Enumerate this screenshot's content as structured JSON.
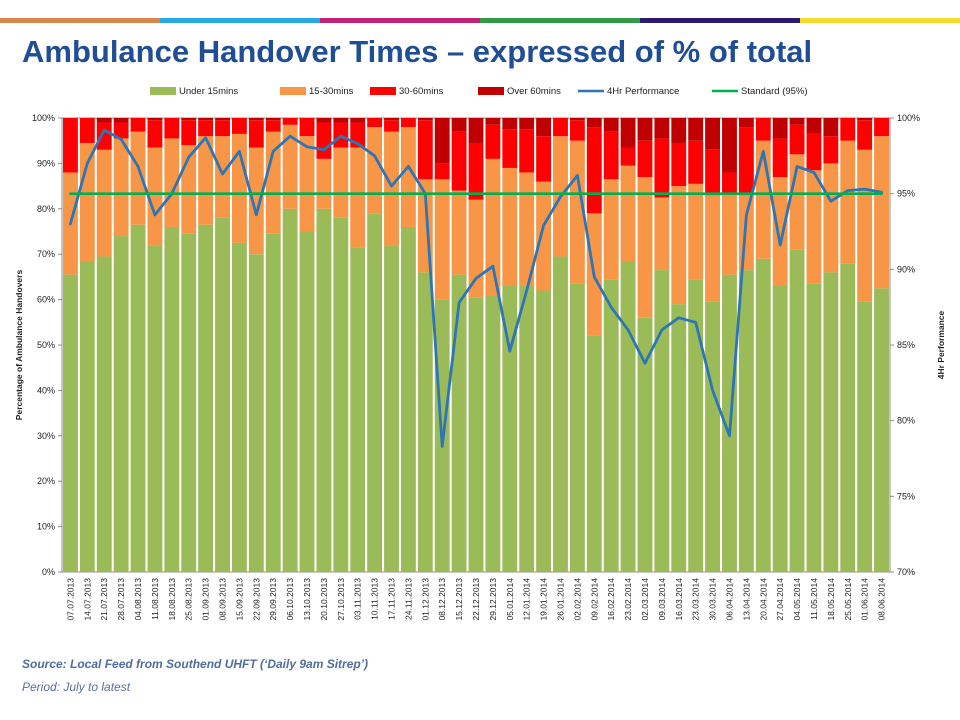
{
  "header": {
    "title": "Ambulance Handover Times – expressed of % of total",
    "stripe_colors": [
      "#d9874a",
      "#27a9e1",
      "#c2227a",
      "#2f9b47",
      "#2d1a6e",
      "#f2dd2e"
    ]
  },
  "footer": {
    "source": "Source: Local Feed from Southend UHFT (‘Daily 9am Sitrep’)",
    "period": "Period: July to latest"
  },
  "chart_data": {
    "type": "bar",
    "stacked": true,
    "title": "",
    "xlabel": "",
    "ylabel": "Percentage of Ambulance Handovers",
    "y2label": "4Hr Performance",
    "ylim": [
      0,
      100
    ],
    "y2lim": [
      70,
      100
    ],
    "yticks": [
      "0%",
      "10%",
      "20%",
      "30%",
      "40%",
      "50%",
      "60%",
      "70%",
      "80%",
      "90%",
      "100%"
    ],
    "y2ticks": [
      "70%",
      "75%",
      "80%",
      "85%",
      "90%",
      "95%",
      "100%"
    ],
    "grid": false,
    "legend_position": "top",
    "categories": [
      "07.07.2013",
      "14.07.2013",
      "21.07.2013",
      "28.07.2013",
      "04.08.2013",
      "11.08.2013",
      "18.08.2013",
      "25.08.2013",
      "01.09.2013",
      "08.09.2013",
      "15.09.2013",
      "22.09.2013",
      "29.09.2013",
      "06.10.2013",
      "13.10.2013",
      "20.10.2013",
      "27.10.2013",
      "03.11.2013",
      "10.11.2013",
      "17.11.2013",
      "24.11.2013",
      "01.12.2013",
      "08.12.2013",
      "15.12.2013",
      "22.12.2013",
      "29.12.2013",
      "05.01.2014",
      "12.01.2014",
      "19.01.2014",
      "26.01.2014",
      "02.02.2014",
      "09.02.2014",
      "16.02.2014",
      "23.02.2014",
      "02.03.2014",
      "09.03.2014",
      "16.03.2014",
      "23.03.2014",
      "30.03.2014",
      "06.04.2014",
      "13.04.2014",
      "20.04.2014",
      "27.04.2014",
      "04.05.2014",
      "11.05.2014",
      "18.05.2014",
      "25.05.2014",
      "01.06.2014",
      "08.06.2014"
    ],
    "series": [
      {
        "name": "Under 15mins",
        "color": "#9bbb59",
        "axis": "left",
        "kind": "bar",
        "values": [
          65.5,
          68.5,
          69.5,
          74,
          76.5,
          72,
          76,
          74.5,
          76.5,
          78,
          72.5,
          70,
          74.5,
          80,
          75,
          80,
          78,
          71.5,
          79,
          72,
          76,
          66,
          60,
          65.5,
          60.5,
          61,
          63,
          63,
          62,
          69.5,
          63.5,
          52,
          64.5,
          68.5,
          56,
          66.5,
          59,
          64.5,
          59.5,
          65.5,
          66.5,
          69,
          63,
          71,
          63.5,
          66,
          68,
          59.5,
          62.5
        ]
      },
      {
        "name": "15-30mins",
        "color": "#f79646",
        "axis": "left",
        "kind": "bar",
        "values": [
          22.5,
          26,
          23.5,
          21.5,
          20.5,
          21.5,
          19.5,
          19.5,
          19.5,
          18,
          24,
          23.5,
          22.5,
          18.5,
          21,
          11,
          15.5,
          22,
          19,
          25,
          22,
          20.5,
          26.5,
          18.5,
          21.5,
          30,
          26,
          25,
          24,
          26.5,
          31.5,
          27,
          22,
          21,
          31,
          16,
          26,
          21,
          23.5,
          18,
          16.5,
          26,
          24,
          21,
          25,
          24,
          27,
          33.5,
          33.5
        ]
      },
      {
        "name": "30-60mins",
        "color": "#ff0000",
        "axis": "left",
        "kind": "bar",
        "values": [
          12,
          5.5,
          6,
          3.5,
          3,
          6,
          4.5,
          5.5,
          3.5,
          3.5,
          3.5,
          6,
          2.5,
          1.5,
          4,
          8,
          5.5,
          5.5,
          2,
          2.5,
          2,
          13,
          3.5,
          13,
          12.5,
          7.5,
          8.5,
          9.5,
          10,
          4,
          4.5,
          19,
          10.5,
          4,
          8,
          13,
          9.5,
          9.5,
          10,
          4.5,
          15,
          5,
          8.5,
          6.5,
          8,
          6,
          5,
          6.5,
          4
        ]
      },
      {
        "name": "Over 60mins",
        "color": "#c00000",
        "axis": "left",
        "kind": "bar",
        "values": [
          0,
          0,
          1,
          1,
          0,
          0.5,
          0,
          0.5,
          0.5,
          0.5,
          0,
          0.5,
          0.5,
          0,
          0,
          1,
          1,
          1,
          0,
          0.5,
          0,
          0.5,
          10,
          3,
          5.5,
          1.5,
          2.5,
          2.5,
          4,
          0,
          0.5,
          2,
          3,
          6.5,
          5,
          4.5,
          5.5,
          5,
          7,
          12,
          2,
          0,
          4.5,
          1.5,
          3.5,
          4,
          0,
          0.5,
          0
        ]
      },
      {
        "name": "4Hr Performance",
        "color": "#2e75b6",
        "axis": "right",
        "kind": "line",
        "values": [
          93,
          97,
          99.2,
          98.6,
          96.8,
          93.6,
          95,
          97.4,
          98.7,
          96.3,
          97.8,
          93.6,
          97.8,
          98.8,
          98.1,
          97.9,
          98.8,
          98.3,
          97.5,
          95.5,
          96.8,
          95,
          78.3,
          87.8,
          89.4,
          90.2,
          84.6,
          88.6,
          92.9,
          94.8,
          96.2,
          89.5,
          87.5,
          86,
          83.8,
          86,
          86.8,
          86.5,
          82,
          79,
          93.6,
          97.8,
          91.6,
          96.8,
          96.4,
          94.5,
          95.2,
          95.3,
          95.1
        ]
      },
      {
        "name": "Standard (95%)",
        "color": "#00b050",
        "axis": "right",
        "kind": "line",
        "values": [
          95,
          95,
          95,
          95,
          95,
          95,
          95,
          95,
          95,
          95,
          95,
          95,
          95,
          95,
          95,
          95,
          95,
          95,
          95,
          95,
          95,
          95,
          95,
          95,
          95,
          95,
          95,
          95,
          95,
          95,
          95,
          95,
          95,
          95,
          95,
          95,
          95,
          95,
          95,
          95,
          95,
          95,
          95,
          95,
          95,
          95,
          95,
          95,
          95
        ]
      }
    ]
  }
}
